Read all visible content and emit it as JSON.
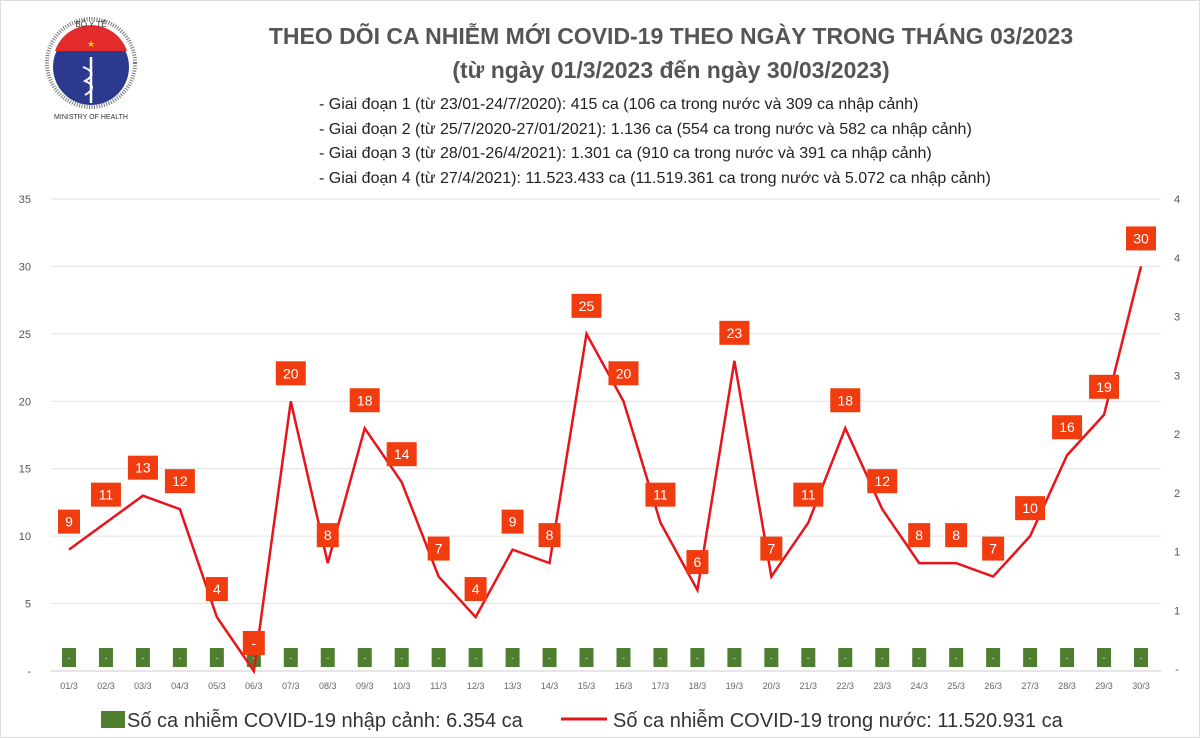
{
  "header": {
    "title": "THEO DÕI CA NHIỄM MỚI COVID-19 THEO NGÀY TRONG THÁNG 03/2023",
    "subtitle": "(từ ngày 01/3/2023 đến ngày 30/03/2023)",
    "logo_text": "BỘ Y TẾ - MINISTRY OF HEALTH",
    "notes": [
      "- Giai đoạn 1 (từ 23/01-24/7/2020): 415 ca (106 ca trong nước và 309 ca nhập cảnh)",
      "- Giai đoạn 2 (từ 25/7/2020-27/01/2021): 1.136 ca (554 ca trong nước và 582 ca nhập cảnh)",
      "- Giai đoạn 3 (từ 28/01-26/4/2021): 1.301 ca (910 ca trong nước và 391 ca nhập cảnh)",
      "- Giai đoạn 4 (từ 27/4/2021): 11.523.433 ca (11.519.361 ca trong nước và 5.072 ca nhập cảnh)"
    ]
  },
  "chart_data": {
    "type": "bar+line",
    "categories": [
      "01/3",
      "02/3",
      "03/3",
      "04/3",
      "05/3",
      "06/3",
      "07/3",
      "08/3",
      "09/3",
      "10/3",
      "11/3",
      "12/3",
      "13/3",
      "14/3",
      "15/3",
      "16/3",
      "17/3",
      "18/3",
      "19/3",
      "20/3",
      "21/3",
      "22/3",
      "23/3",
      "24/3",
      "25/3",
      "26/3",
      "27/3",
      "28/3",
      "29/3",
      "30/3"
    ],
    "series": [
      {
        "name": "Số ca nhiễm COVID-19 nhập cảnh: 6.354 ca",
        "type": "bar",
        "axis": "right",
        "color": "#4e7f2e",
        "values": [
          0,
          0,
          0,
          0,
          0,
          0,
          0,
          0,
          0,
          0,
          0,
          0,
          0,
          0,
          0,
          0,
          0,
          0,
          0,
          0,
          0,
          0,
          0,
          0,
          0,
          0,
          0,
          0,
          0,
          0
        ]
      },
      {
        "name": "Số ca nhiễm COVID-19 trong nước: 11.520.931 ca",
        "type": "line",
        "axis": "left",
        "color": "#e8141c",
        "label_color": "#f03c0f",
        "values": [
          9,
          11,
          13,
          12,
          4,
          0,
          20,
          8,
          18,
          14,
          7,
          4,
          9,
          8,
          25,
          20,
          11,
          6,
          23,
          7,
          11,
          18,
          12,
          8,
          8,
          7,
          10,
          16,
          19,
          30
        ]
      }
    ],
    "zero_label": "-",
    "ylim": [
      0,
      35
    ],
    "yticks": [
      "-",
      "5",
      "10",
      "15",
      "20",
      "25",
      "30",
      "35"
    ],
    "y2ticks": [
      "-",
      "1",
      "1",
      "2",
      "2",
      "3",
      "3",
      "4",
      "4"
    ],
    "grid": true,
    "legend": "bottom"
  }
}
